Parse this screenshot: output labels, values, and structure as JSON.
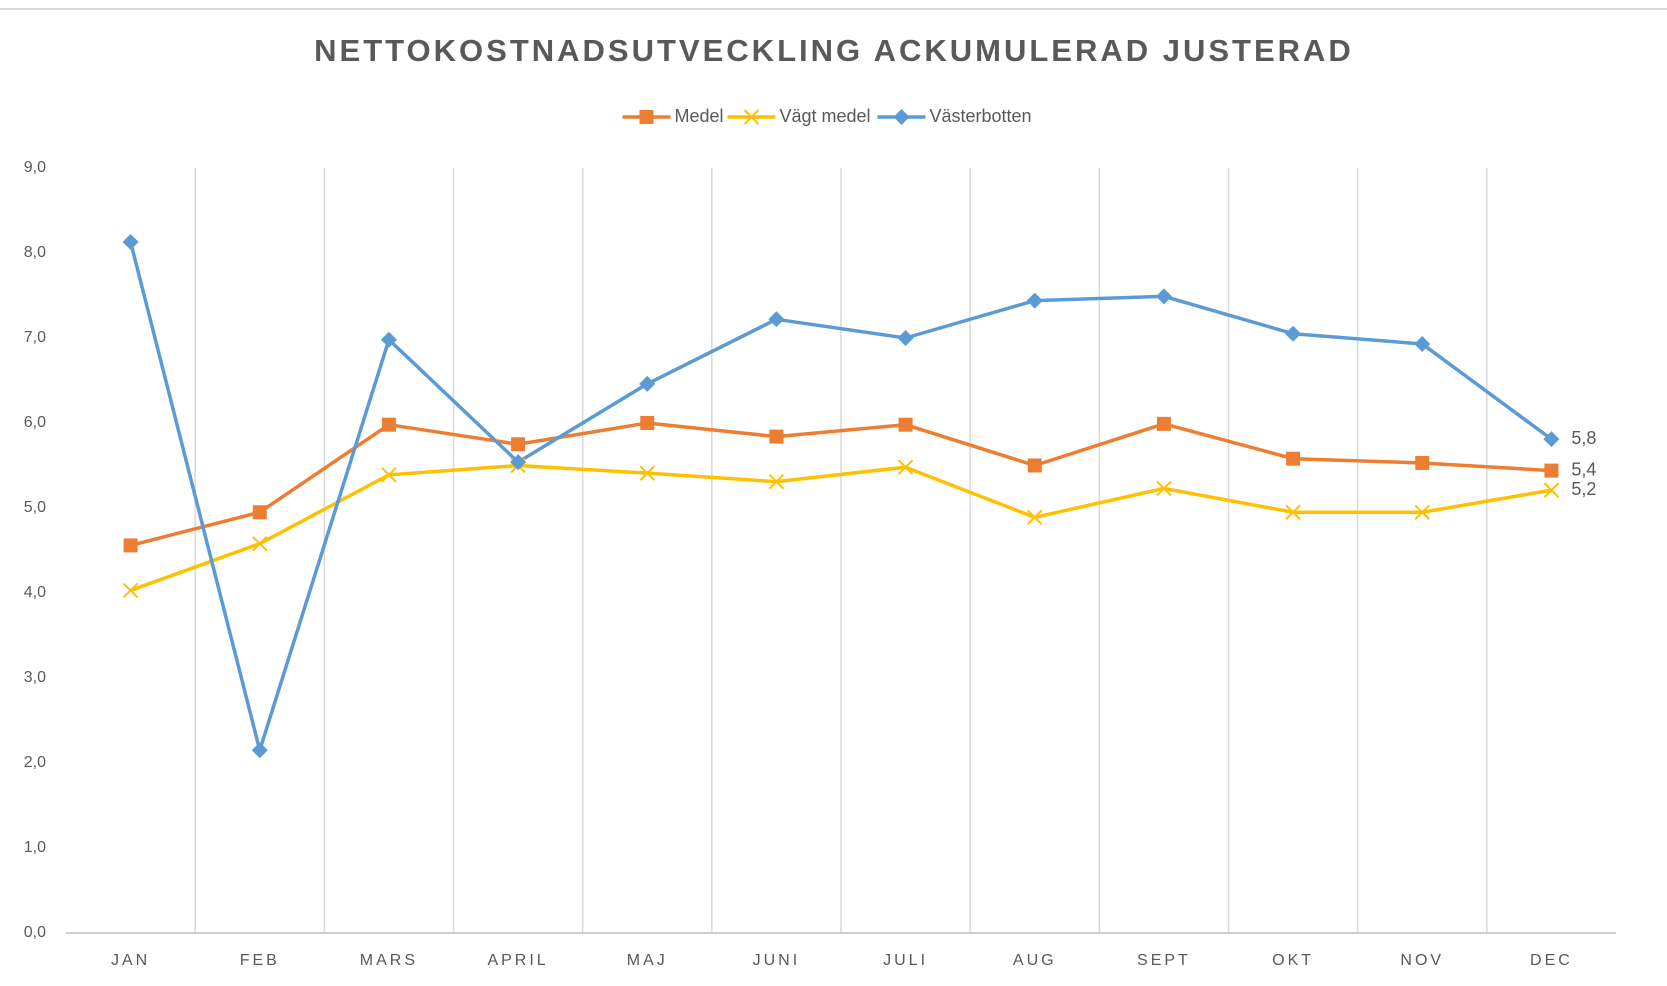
{
  "chart_data": {
    "type": "line",
    "title": "NETTOKOSTNADSUTVECKLING ACKUMULERAD JUSTERAD",
    "categories": [
      "JAN",
      "FEB",
      "MARS",
      "APRIL",
      "MAJ",
      "JUNI",
      "JULI",
      "AUG",
      "SEPT",
      "OKT",
      "NOV",
      "DEC"
    ],
    "series": [
      {
        "name": "Medel",
        "color": "#ed7d31",
        "marker": "square",
        "values": [
          4.56,
          4.95,
          5.98,
          5.75,
          6.0,
          5.84,
          5.98,
          5.5,
          5.99,
          5.58,
          5.53,
          5.44
        ],
        "value_labels": [
          null,
          null,
          null,
          null,
          null,
          null,
          null,
          null,
          null,
          null,
          null,
          "5,4"
        ]
      },
      {
        "name": "Vägt medel",
        "color": "#ffc000",
        "marker": "x",
        "values": [
          4.03,
          4.58,
          5.39,
          5.5,
          5.41,
          5.31,
          5.48,
          4.89,
          5.23,
          4.95,
          4.95,
          5.21
        ],
        "value_labels": [
          null,
          null,
          null,
          null,
          null,
          null,
          null,
          null,
          null,
          null,
          null,
          "5,2"
        ]
      },
      {
        "name": "Västerbotten",
        "color": "#5b9bd5",
        "marker": "diamond",
        "values": [
          8.13,
          2.15,
          6.98,
          5.54,
          6.46,
          7.22,
          7.0,
          7.44,
          7.49,
          7.05,
          6.93,
          5.81
        ],
        "value_labels": [
          null,
          null,
          null,
          null,
          null,
          null,
          null,
          null,
          null,
          null,
          null,
          "5,8"
        ]
      }
    ],
    "ylim": [
      0,
      9
    ],
    "yticks": [
      {
        "value": 0,
        "label": "0,0"
      },
      {
        "value": 1,
        "label": "1,0"
      },
      {
        "value": 2,
        "label": "2,0"
      },
      {
        "value": 3,
        "label": "3,0"
      },
      {
        "value": 4,
        "label": "4,0"
      },
      {
        "value": 5,
        "label": "5,0"
      },
      {
        "value": 6,
        "label": "6,0"
      },
      {
        "value": 7,
        "label": "7,0"
      },
      {
        "value": 8,
        "label": "8,0"
      },
      {
        "value": 9,
        "label": "9,0"
      }
    ],
    "grid": "x",
    "legend": "top"
  }
}
